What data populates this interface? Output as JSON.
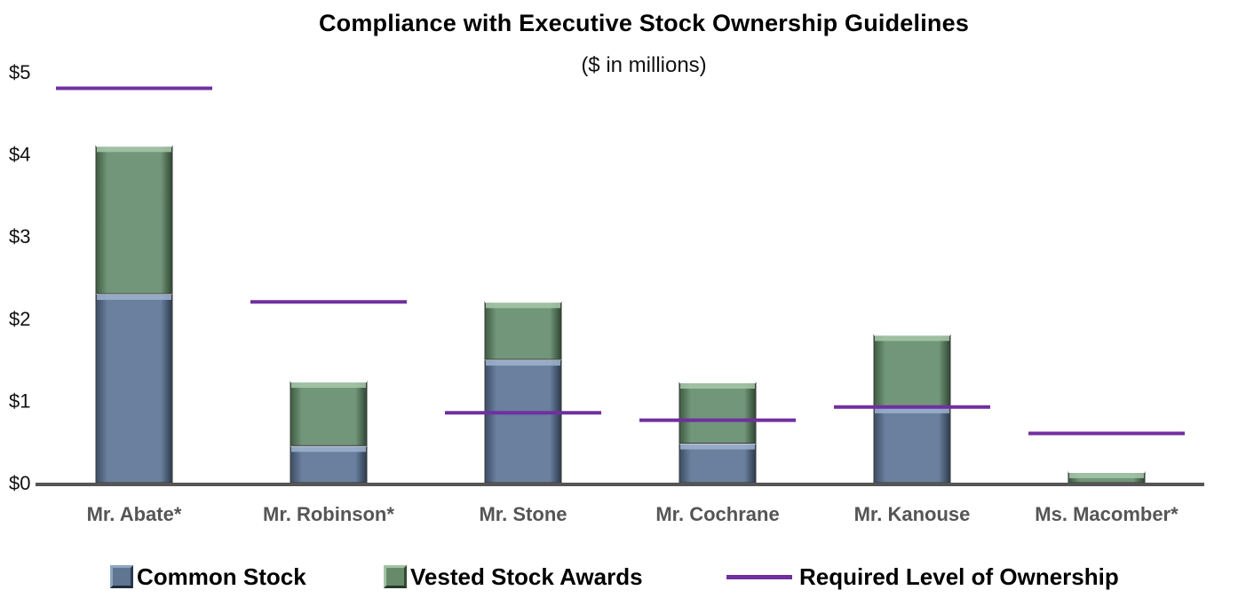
{
  "chart_data": {
    "type": "bar",
    "stacked": true,
    "title": "Compliance with Executive Stock Ownership Guidelines",
    "subtitle": "($ in millions)",
    "categories": [
      "Mr. Abate*",
      "Mr. Robinson*",
      "Mr. Stone",
      "Mr. Cochrane",
      "Mr. Kanouse",
      "Ms. Macomber*"
    ],
    "series": [
      {
        "name": "Common Stock",
        "values": [
          2.3,
          0.45,
          1.5,
          0.48,
          0.92,
          0.0
        ],
        "color": "#5f7592"
      },
      {
        "name": "Vested Stock Awards",
        "values": [
          1.8,
          0.78,
          0.7,
          0.74,
          0.88,
          0.13
        ],
        "color": "#678a6a"
      }
    ],
    "required": {
      "name": "Required Level of Ownership",
      "values": [
        4.8,
        2.2,
        0.85,
        0.76,
        0.92,
        0.6
      ],
      "color": "#7030a0"
    },
    "ylim": [
      0,
      5
    ],
    "yticks": [
      0,
      1,
      2,
      3,
      4,
      5
    ],
    "ytick_labels": [
      "$0",
      "$1",
      "$2",
      "$3",
      "$4",
      "$5"
    ],
    "xlabel": "",
    "ylabel": "",
    "legend_position": "bottom"
  }
}
